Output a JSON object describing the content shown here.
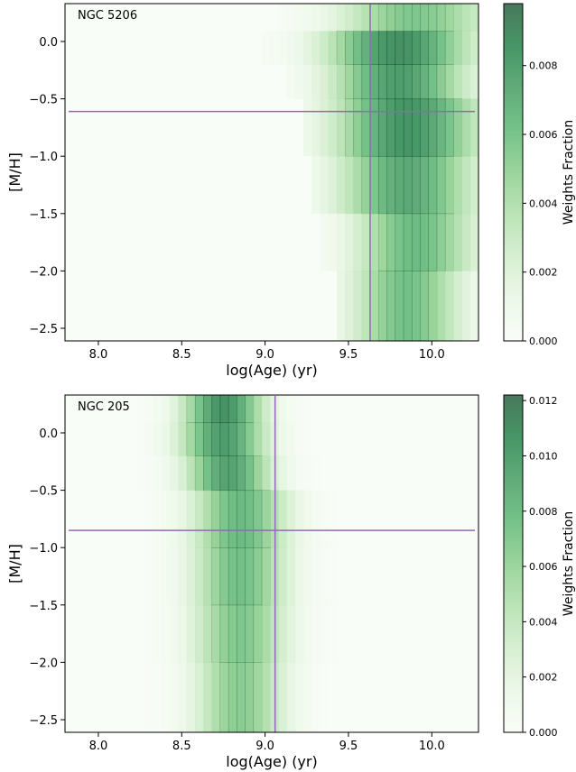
{
  "colors": {
    "cmap_low": "#f7fcf5",
    "cmap_high": "#006d2c",
    "crosshair": "#9467bd",
    "axis": "#000000"
  },
  "chart_data": [
    {
      "type": "heatmap",
      "annotation": "NGC 5206",
      "xlabel": "log(Age) (yr)",
      "ylabel": "[M/H]",
      "colorbar_label": "Weights Fraction",
      "xlim": [
        7.8,
        10.28
      ],
      "ylim": [
        -2.61,
        0.33
      ],
      "xticks": [
        8.0,
        8.5,
        9.0,
        9.5,
        10.0
      ],
      "xtick_labels": [
        "8.0",
        "8.5",
        "9.0",
        "9.5",
        "10.0"
      ],
      "yticks": [
        0.0,
        -0.5,
        -1.0,
        -1.5,
        -2.0,
        -2.5
      ],
      "ytick_labels": [
        "0.0",
        "−0.5",
        "−1.0",
        "−1.5",
        "−2.0",
        "−2.5"
      ],
      "clim": [
        0.0,
        0.0098
      ],
      "cticks": [
        0.0,
        0.002,
        0.004,
        0.006,
        0.008
      ],
      "ctick_labels": [
        "0.000",
        "0.002",
        "0.004",
        "0.006",
        "0.008"
      ],
      "metallicity_bins": [
        0.22,
        -0.05,
        -0.35,
        -0.75,
        -1.25,
        -1.75,
        -2.25
      ],
      "profiles": [
        {
          "metallicity": 0.22,
          "peak_age": 9.9,
          "width": 0.32,
          "amp": 0.0058,
          "min_age": 9.1
        },
        {
          "metallicity": -0.05,
          "peak_age": 9.8,
          "width": 0.3,
          "amp": 0.0088,
          "min_age": 9.0
        },
        {
          "metallicity": -0.35,
          "peak_age": 9.8,
          "width": 0.28,
          "amp": 0.0082,
          "min_age": 9.15
        },
        {
          "metallicity": -0.75,
          "peak_age": 9.85,
          "width": 0.3,
          "amp": 0.0086,
          "min_age": 9.25
        },
        {
          "metallicity": -1.25,
          "peak_age": 9.85,
          "width": 0.28,
          "amp": 0.0075,
          "min_age": 9.3
        },
        {
          "metallicity": -1.75,
          "peak_age": 9.9,
          "width": 0.25,
          "amp": 0.0065,
          "min_age": 9.35
        },
        {
          "metallicity": -2.25,
          "peak_age": 9.85,
          "width": 0.23,
          "amp": 0.0062,
          "min_age": 9.45
        }
      ],
      "mean_log_age": 9.63,
      "mean_metallicity": -0.61
    },
    {
      "type": "heatmap",
      "annotation": "NGC 205",
      "xlabel": "log(Age) (yr)",
      "ylabel": "[M/H]",
      "colorbar_label": "Weights Fraction",
      "xlim": [
        7.8,
        10.28
      ],
      "ylim": [
        -2.61,
        0.33
      ],
      "xticks": [
        8.0,
        8.5,
        9.0,
        9.5,
        10.0
      ],
      "xtick_labels": [
        "8.0",
        "8.5",
        "9.0",
        "9.5",
        "10.0"
      ],
      "yticks": [
        0.0,
        -0.5,
        -1.0,
        -1.5,
        -2.0,
        -2.5
      ],
      "ytick_labels": [
        "0.0",
        "−0.5",
        "−1.0",
        "−1.5",
        "−2.0",
        "−2.5"
      ],
      "clim": [
        0.0,
        0.0122
      ],
      "cticks": [
        0.0,
        0.002,
        0.004,
        0.006,
        0.008,
        0.01,
        0.012
      ],
      "ctick_labels": [
        "0.000",
        "0.002",
        "0.004",
        "0.006",
        "0.008",
        "0.010",
        "0.012"
      ],
      "metallicity_bins": [
        0.22,
        -0.05,
        -0.35,
        -0.75,
        -1.25,
        -1.75,
        -2.25
      ],
      "profiles": [
        {
          "metallicity": 0.22,
          "peak_age": 8.75,
          "width": 0.17,
          "amp": 0.0108,
          "min_age": 8.0
        },
        {
          "metallicity": -0.05,
          "peak_age": 8.75,
          "width": 0.18,
          "amp": 0.0102,
          "min_age": 8.0
        },
        {
          "metallicity": -0.35,
          "peak_age": 8.78,
          "width": 0.18,
          "amp": 0.0098,
          "min_age": 8.0
        },
        {
          "metallicity": -0.75,
          "peak_age": 8.85,
          "width": 0.2,
          "amp": 0.0082,
          "min_age": 8.0
        },
        {
          "metallicity": -1.25,
          "peak_age": 8.85,
          "width": 0.2,
          "amp": 0.0078,
          "min_age": 8.0
        },
        {
          "metallicity": -1.75,
          "peak_age": 8.85,
          "width": 0.2,
          "amp": 0.0072,
          "min_age": 8.0
        },
        {
          "metallicity": -2.25,
          "peak_age": 8.85,
          "width": 0.19,
          "amp": 0.0068,
          "min_age": 8.0
        }
      ],
      "mean_log_age": 9.06,
      "mean_metallicity": -0.85
    }
  ]
}
